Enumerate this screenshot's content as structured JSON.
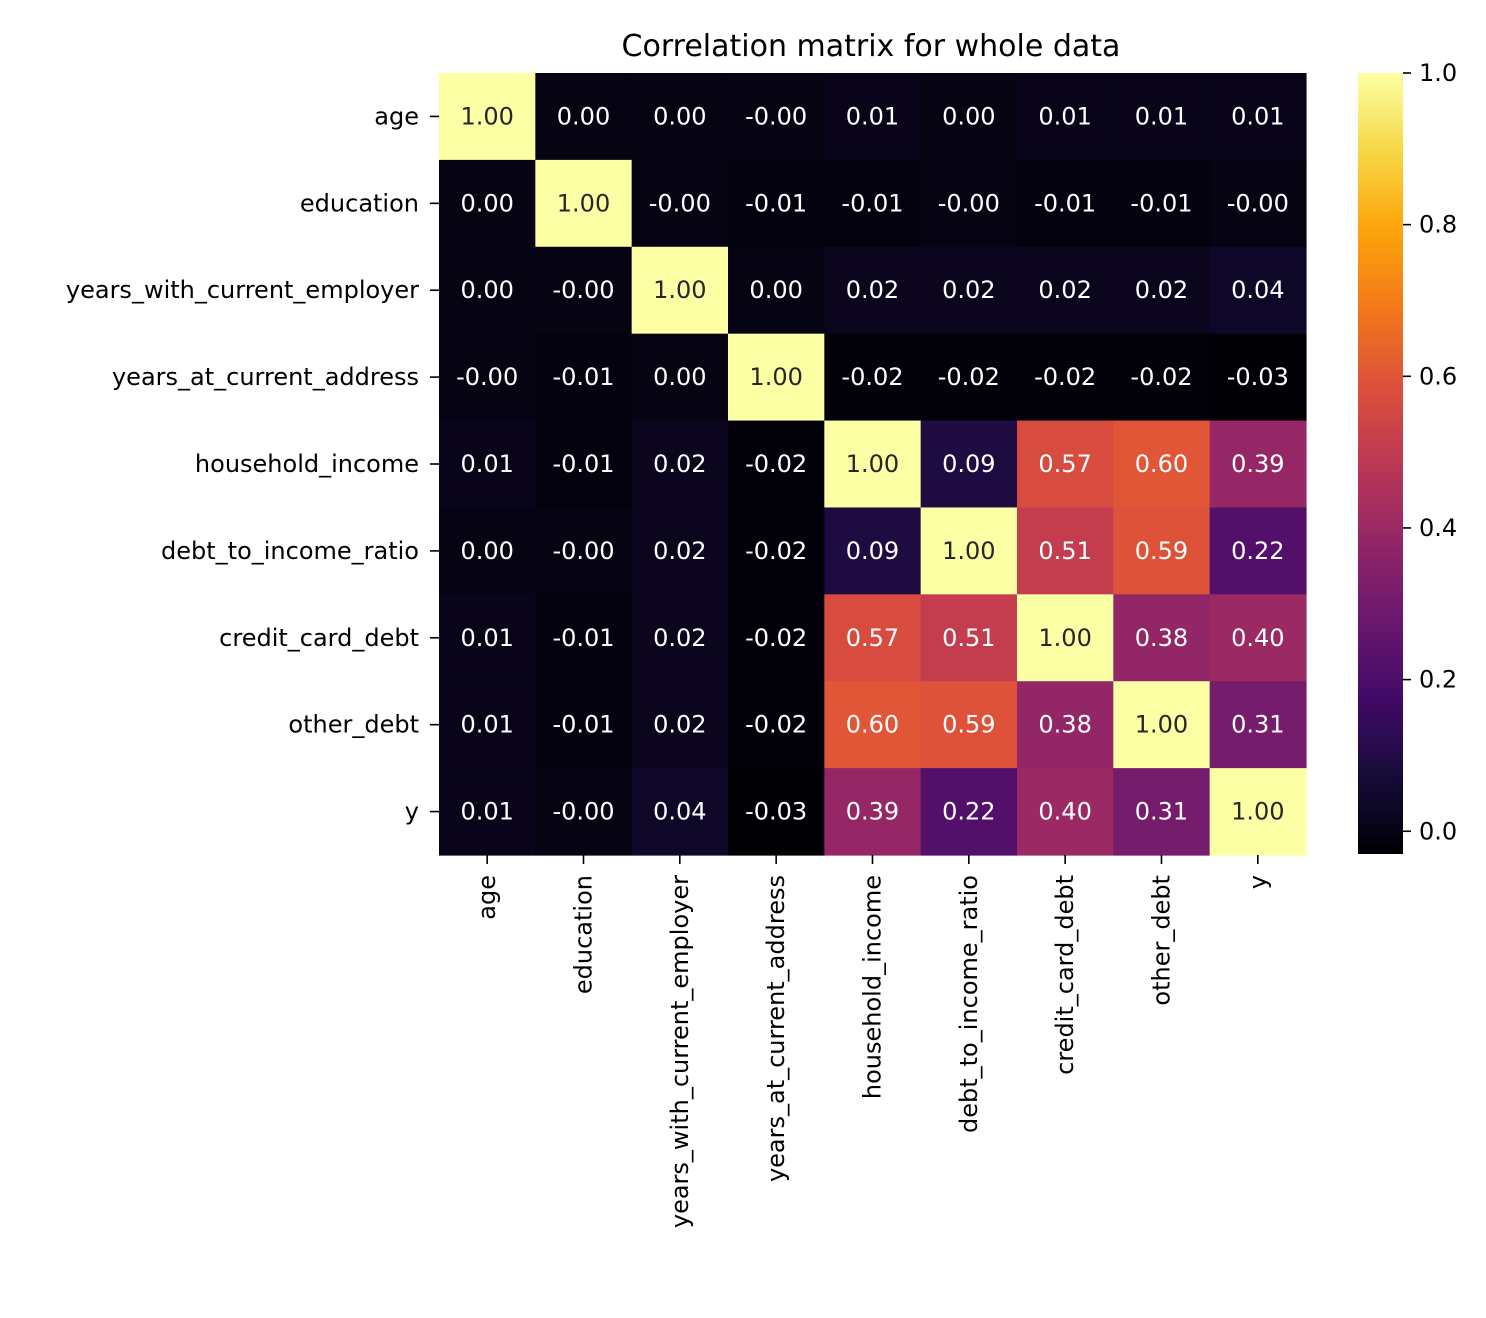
{
  "chart_data": {
    "type": "heatmap",
    "title": "Correlation matrix for whole data",
    "xlabel": "",
    "ylabel": "",
    "colormap": "inferno",
    "rows": [
      "age",
      "education",
      "years_with_current_employer",
      "years_at_current_address",
      "household_income",
      "debt_to_income_ratio",
      "credit_card_debt",
      "other_debt",
      "y"
    ],
    "columns": [
      "age",
      "education",
      "years_with_current_employer",
      "years_at_current_address",
      "household_income",
      "debt_to_income_ratio",
      "credit_card_debt",
      "other_debt",
      "y"
    ],
    "values": [
      [
        1.0,
        0.0,
        0.0,
        -0.0,
        0.01,
        0.0,
        0.01,
        0.01,
        0.01
      ],
      [
        0.0,
        1.0,
        -0.0,
        -0.01,
        -0.01,
        -0.0,
        -0.01,
        -0.01,
        -0.0
      ],
      [
        0.0,
        -0.0,
        1.0,
        0.0,
        0.02,
        0.02,
        0.02,
        0.02,
        0.04
      ],
      [
        -0.0,
        -0.01,
        0.0,
        1.0,
        -0.02,
        -0.02,
        -0.02,
        -0.02,
        -0.03
      ],
      [
        0.01,
        -0.01,
        0.02,
        -0.02,
        1.0,
        0.09,
        0.57,
        0.6,
        0.39
      ],
      [
        0.0,
        -0.0,
        0.02,
        -0.02,
        0.09,
        1.0,
        0.51,
        0.59,
        0.22
      ],
      [
        0.01,
        -0.01,
        0.02,
        -0.02,
        0.57,
        0.51,
        1.0,
        0.38,
        0.4
      ],
      [
        0.01,
        -0.01,
        0.02,
        -0.02,
        0.6,
        0.59,
        0.38,
        1.0,
        0.31
      ],
      [
        0.01,
        -0.0,
        0.04,
        -0.03,
        0.39,
        0.22,
        0.4,
        0.31,
        1.0
      ]
    ],
    "cell_labels": [
      [
        "1.00",
        "0.00",
        "0.00",
        "-0.00",
        "0.01",
        "0.00",
        "0.01",
        "0.01",
        "0.01"
      ],
      [
        "0.00",
        "1.00",
        "-0.00",
        "-0.01",
        "-0.01",
        "-0.00",
        "-0.01",
        "-0.01",
        "-0.00"
      ],
      [
        "0.00",
        "-0.00",
        "1.00",
        "0.00",
        "0.02",
        "0.02",
        "0.02",
        "0.02",
        "0.04"
      ],
      [
        "-0.00",
        "-0.01",
        "0.00",
        "1.00",
        "-0.02",
        "-0.02",
        "-0.02",
        "-0.02",
        "-0.03"
      ],
      [
        "0.01",
        "-0.01",
        "0.02",
        "-0.02",
        "1.00",
        "0.09",
        "0.57",
        "0.60",
        "0.39"
      ],
      [
        "0.00",
        "-0.00",
        "0.02",
        "-0.02",
        "0.09",
        "1.00",
        "0.51",
        "0.59",
        "0.22"
      ],
      [
        "0.01",
        "-0.01",
        "0.02",
        "-0.02",
        "0.57",
        "0.51",
        "1.00",
        "0.38",
        "0.40"
      ],
      [
        "0.01",
        "-0.01",
        "0.02",
        "-0.02",
        "0.60",
        "0.59",
        "0.38",
        "1.00",
        "0.31"
      ],
      [
        "0.01",
        "-0.00",
        "0.04",
        "-0.03",
        "0.39",
        "0.22",
        "0.40",
        "0.31",
        "1.00"
      ]
    ],
    "colorbar": {
      "range": [
        -0.03,
        1.0
      ],
      "ticks": [
        0.0,
        0.2,
        0.4,
        0.6,
        0.8,
        1.0
      ],
      "tick_labels": [
        "0.0",
        "0.2",
        "0.4",
        "0.6",
        "0.8",
        "1.0"
      ]
    }
  }
}
